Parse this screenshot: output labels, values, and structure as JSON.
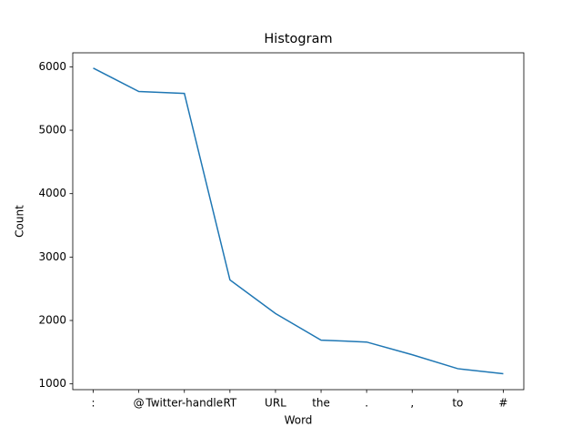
{
  "chart_data": {
    "type": "line",
    "title": "Histogram",
    "x_label": "Word",
    "y_label": "Count",
    "categories": [
      ":",
      "@",
      "Twitter-handle",
      "RT",
      "URL",
      "the",
      ".",
      ",",
      "to",
      "#"
    ],
    "series": [
      {
        "name": "Count",
        "color": "#1f77b4",
        "values": [
          5980,
          5610,
          5580,
          2640,
          2110,
          1690,
          1660,
          1460,
          1240,
          1160
        ]
      }
    ],
    "ylim": [
      909,
      6221
    ],
    "yticks": [
      1000,
      2000,
      3000,
      4000,
      5000,
      6000
    ],
    "grid": false
  }
}
